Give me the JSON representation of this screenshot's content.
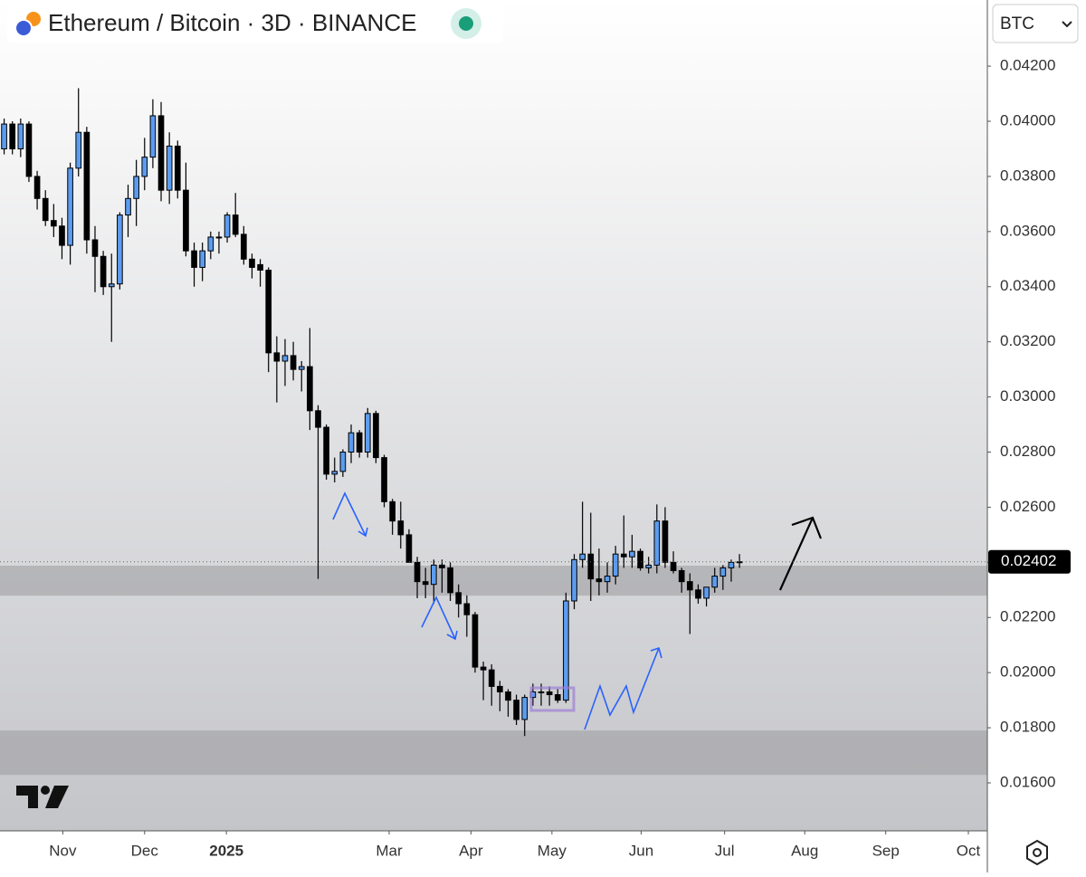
{
  "chart_data": {
    "type": "candlestick",
    "title": "Ethereum / Bitcoin · 3D · BINANCE",
    "currency": "BTC",
    "up_color": "#5b9cf0",
    "down_color": "#000000",
    "open": [
      0.039,
      0.0399,
      0.039,
      0.0399,
      0.038,
      0.0372,
      0.0364,
      0.0362,
      0.0355,
      0.0383,
      0.0396,
      0.0357,
      0.0351,
      0.034,
      0.0341,
      0.0366,
      0.0372,
      0.038,
      0.0387,
      0.0402,
      0.0375,
      0.0391,
      0.0375,
      0.0353,
      0.0347,
      0.0353,
      0.0358,
      0.0358,
      0.0366,
      0.0359,
      0.035,
      0.0348,
      0.0346,
      0.0316,
      0.0313,
      0.0315,
      0.031,
      0.0311,
      0.0295,
      0.0289,
      0.0272,
      0.0273,
      0.028,
      0.0287,
      0.028,
      0.0294,
      0.0278,
      0.0262,
      0.0255,
      0.025,
      0.024,
      0.0233,
      0.0232,
      0.0239,
      0.0238,
      0.0229,
      0.0225,
      0.0221,
      0.0202,
      0.0201,
      0.0195,
      0.0193,
      0.019,
      0.0183,
      0.0191,
      0.0193,
      0.0193,
      0.0192,
      0.019,
      0.0226,
      0.0241,
      0.0243,
      0.0234,
      0.0233,
      0.0235,
      0.0243,
      0.0242,
      0.0244,
      0.0238,
      0.0239,
      0.0255,
      0.024,
      0.0237,
      0.0233,
      0.023,
      0.0227,
      0.0231,
      0.0235,
      0.0238,
      0.024
    ],
    "high": [
      0.0401,
      0.04,
      0.0401,
      0.04,
      0.0382,
      0.0375,
      0.037,
      0.0365,
      0.0385,
      0.0412,
      0.0398,
      0.0362,
      0.0353,
      0.0352,
      0.0367,
      0.0377,
      0.0386,
      0.0394,
      0.0408,
      0.0407,
      0.0396,
      0.0393,
      0.0385,
      0.0356,
      0.0356,
      0.036,
      0.036,
      0.0367,
      0.0374,
      0.0362,
      0.0352,
      0.035,
      0.0347,
      0.0322,
      0.0321,
      0.032,
      0.0313,
      0.0325,
      0.0297,
      0.029,
      0.0278,
      0.0281,
      0.029,
      0.0288,
      0.0296,
      0.0295,
      0.0279,
      0.0263,
      0.0262,
      0.0252,
      0.0242,
      0.0238,
      0.0241,
      0.0241,
      0.024,
      0.0232,
      0.0228,
      0.0222,
      0.0204,
      0.0203,
      0.0197,
      0.0194,
      0.0192,
      0.0192,
      0.0196,
      0.0196,
      0.0195,
      0.0194,
      0.0229,
      0.0243,
      0.0262,
      0.0258,
      0.0245,
      0.024,
      0.0246,
      0.0257,
      0.025,
      0.0245,
      0.0242,
      0.0261,
      0.026,
      0.0244,
      0.0238,
      0.0236,
      0.0232,
      0.0231,
      0.0238,
      0.0239,
      0.0241,
      0.0243
    ],
    "low": [
      0.0388,
      0.0388,
      0.0387,
      0.0378,
      0.0368,
      0.0362,
      0.0358,
      0.035,
      0.0348,
      0.038,
      0.0352,
      0.0338,
      0.0337,
      0.032,
      0.0339,
      0.0358,
      0.0362,
      0.0375,
      0.0383,
      0.0371,
      0.037,
      0.0372,
      0.0351,
      0.034,
      0.0342,
      0.035,
      0.0352,
      0.0356,
      0.0358,
      0.0348,
      0.0343,
      0.034,
      0.0309,
      0.0298,
      0.0304,
      0.0306,
      0.0302,
      0.0288,
      0.0234,
      0.027,
      0.0269,
      0.0271,
      0.0276,
      0.0278,
      0.0278,
      0.0276,
      0.026,
      0.025,
      0.0245,
      0.024,
      0.0227,
      0.0227,
      0.0225,
      0.0229,
      0.0226,
      0.022,
      0.0213,
      0.02,
      0.019,
      0.0188,
      0.0186,
      0.0184,
      0.0181,
      0.0177,
      0.0188,
      0.0188,
      0.0188,
      0.0189,
      0.0189,
      0.0223,
      0.0238,
      0.0226,
      0.0228,
      0.0229,
      0.0232,
      0.0238,
      0.0238,
      0.0237,
      0.0236,
      0.0236,
      0.0238,
      0.0236,
      0.0229,
      0.0214,
      0.0225,
      0.0224,
      0.0229,
      0.023,
      0.0233,
      0.0238
    ],
    "close": [
      0.0399,
      0.039,
      0.0399,
      0.038,
      0.0372,
      0.0364,
      0.0362,
      0.0355,
      0.0383,
      0.0396,
      0.0357,
      0.0351,
      0.034,
      0.0341,
      0.0366,
      0.0372,
      0.038,
      0.0387,
      0.0402,
      0.0375,
      0.0391,
      0.0375,
      0.0353,
      0.0347,
      0.0353,
      0.0358,
      0.0358,
      0.0366,
      0.0359,
      0.035,
      0.0347,
      0.0346,
      0.0316,
      0.0313,
      0.0315,
      0.031,
      0.0311,
      0.0295,
      0.0289,
      0.0272,
      0.0273,
      0.028,
      0.0287,
      0.028,
      0.0294,
      0.0278,
      0.0262,
      0.0255,
      0.025,
      0.024,
      0.0233,
      0.0232,
      0.0239,
      0.0238,
      0.0229,
      0.0225,
      0.0221,
      0.0202,
      0.0201,
      0.0195,
      0.0193,
      0.019,
      0.0183,
      0.0191,
      0.0193,
      0.0193,
      0.0192,
      0.019,
      0.0226,
      0.0241,
      0.0243,
      0.0234,
      0.0233,
      0.0235,
      0.0243,
      0.0242,
      0.0244,
      0.0238,
      0.0239,
      0.0255,
      0.024,
      0.0237,
      0.0233,
      0.023,
      0.0227,
      0.0231,
      0.0235,
      0.0238,
      0.024,
      0.02402
    ],
    "last_price": 0.02402,
    "zones": [
      {
        "from": 0.02279,
        "to": 0.02388
      },
      {
        "from": 0.01629,
        "to": 0.0179
      }
    ],
    "xlim": [
      -0.5,
      119
    ],
    "xticks": [
      {
        "value": 7.1,
        "label": "Nov"
      },
      {
        "value": 17.0,
        "label": "Dec"
      },
      {
        "value": 26.9,
        "label": "2025"
      },
      {
        "value": 46.6,
        "label": "Mar"
      },
      {
        "value": 56.5,
        "label": "Apr"
      },
      {
        "value": 66.3,
        "label": "May"
      },
      {
        "value": 77.1,
        "label": "Jun"
      },
      {
        "value": 87.2,
        "label": "Jul"
      },
      {
        "value": 96.9,
        "label": "Aug"
      },
      {
        "value": 106.7,
        "label": "Sep"
      },
      {
        "value": 116.7,
        "label": "Oct"
      }
    ],
    "ylim": [
      0.01426,
      0.0444
    ],
    "yticks": [
      {
        "value": 0.042,
        "label": "0.04200"
      },
      {
        "value": 0.04,
        "label": "0.04000"
      },
      {
        "value": 0.038,
        "label": "0.03800"
      },
      {
        "value": 0.036,
        "label": "0.03600"
      },
      {
        "value": 0.034,
        "label": "0.03400"
      },
      {
        "value": 0.032,
        "label": "0.03200"
      },
      {
        "value": 0.03,
        "label": "0.03000"
      },
      {
        "value": 0.028,
        "label": "0.02800"
      },
      {
        "value": 0.026,
        "label": "0.02600"
      },
      {
        "value": 0.024,
        "label": "0.02400"
      },
      {
        "value": 0.022,
        "label": "0.02200"
      },
      {
        "value": 0.02,
        "label": "0.02000"
      },
      {
        "value": 0.018,
        "label": "0.01800"
      },
      {
        "value": 0.016,
        "label": "0.01600"
      }
    ]
  }
}
